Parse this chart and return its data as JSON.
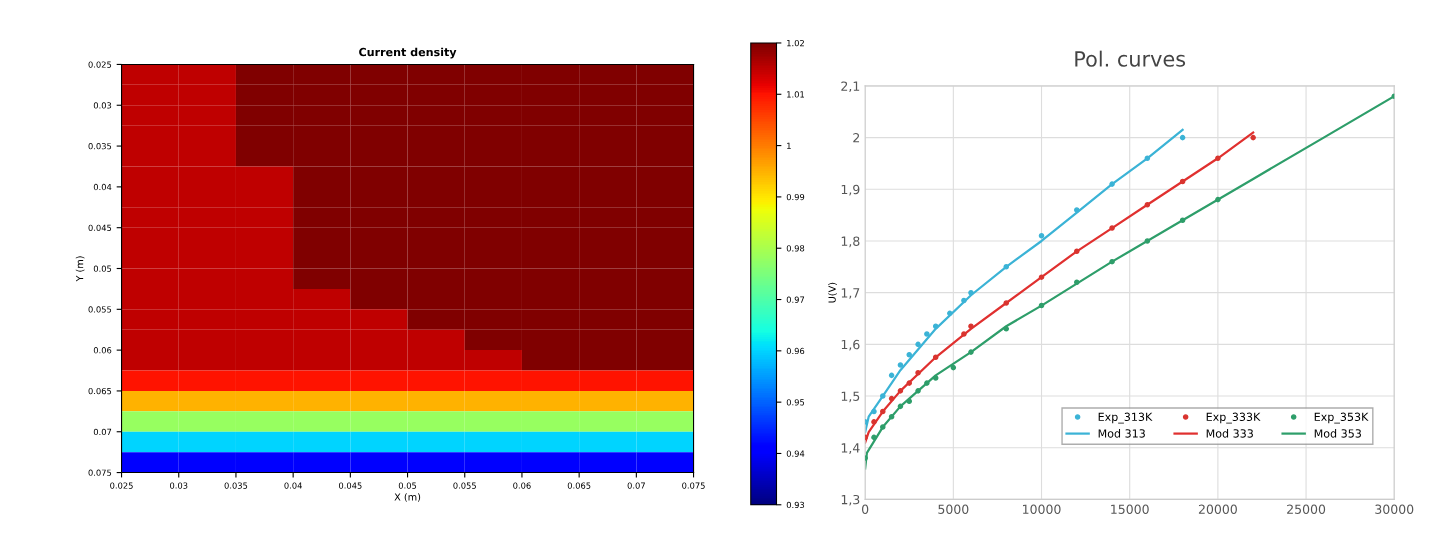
{
  "chart_data": [
    {
      "type": "heatmap",
      "title": "Current density",
      "xlabel": "X (m)",
      "ylabel": "Y (m)",
      "x": [
        0.0275,
        0.0325,
        0.0375,
        0.0425,
        0.0475,
        0.0525,
        0.0575,
        0.0625,
        0.0675,
        0.0725
      ],
      "y": [
        0.02625,
        0.02875,
        0.03125,
        0.03375,
        0.03625,
        0.03875,
        0.04125,
        0.04375,
        0.04625,
        0.04875,
        0.05125,
        0.05375,
        0.05625,
        0.05875,
        0.06125,
        0.06375,
        0.06625,
        0.06875,
        0.07125,
        0.07375
      ],
      "cells": [
        [
          1.015,
          1.015,
          1.02,
          1.02,
          1.02,
          1.02,
          1.02,
          1.02,
          1.02,
          1.02
        ],
        [
          1.015,
          1.015,
          1.02,
          1.02,
          1.02,
          1.02,
          1.02,
          1.02,
          1.02,
          1.02
        ],
        [
          1.015,
          1.015,
          1.02,
          1.02,
          1.02,
          1.02,
          1.02,
          1.02,
          1.02,
          1.02
        ],
        [
          1.015,
          1.015,
          1.02,
          1.02,
          1.02,
          1.02,
          1.02,
          1.02,
          1.02,
          1.02
        ],
        [
          1.015,
          1.015,
          1.02,
          1.02,
          1.02,
          1.02,
          1.02,
          1.02,
          1.02,
          1.02
        ],
        [
          1.015,
          1.015,
          1.015,
          1.02,
          1.02,
          1.02,
          1.02,
          1.02,
          1.02,
          1.02
        ],
        [
          1.015,
          1.015,
          1.015,
          1.02,
          1.02,
          1.02,
          1.02,
          1.02,
          1.02,
          1.02
        ],
        [
          1.015,
          1.015,
          1.015,
          1.02,
          1.02,
          1.02,
          1.02,
          1.02,
          1.02,
          1.02
        ],
        [
          1.015,
          1.015,
          1.015,
          1.02,
          1.02,
          1.02,
          1.02,
          1.02,
          1.02,
          1.02
        ],
        [
          1.015,
          1.015,
          1.015,
          1.02,
          1.02,
          1.02,
          1.02,
          1.02,
          1.02,
          1.02
        ],
        [
          1.015,
          1.015,
          1.015,
          1.02,
          1.02,
          1.02,
          1.02,
          1.02,
          1.02,
          1.02
        ],
        [
          1.015,
          1.015,
          1.015,
          1.015,
          1.02,
          1.02,
          1.02,
          1.02,
          1.02,
          1.02
        ],
        [
          1.015,
          1.015,
          1.015,
          1.015,
          1.015,
          1.02,
          1.02,
          1.02,
          1.02,
          1.02
        ],
        [
          1.015,
          1.015,
          1.015,
          1.015,
          1.015,
          1.015,
          1.02,
          1.02,
          1.02,
          1.02
        ],
        [
          1.015,
          1.015,
          1.015,
          1.015,
          1.015,
          1.015,
          1.015,
          1.02,
          1.02,
          1.02
        ],
        [
          1.01,
          1.01,
          1.01,
          1.01,
          1.01,
          1.01,
          1.01,
          1.01,
          1.01,
          1.01
        ],
        [
          0.995,
          0.995,
          0.995,
          0.995,
          0.995,
          0.995,
          0.995,
          0.995,
          0.995,
          0.995
        ],
        [
          0.978,
          0.978,
          0.978,
          0.978,
          0.978,
          0.978,
          0.978,
          0.978,
          0.978,
          0.978
        ],
        [
          0.96,
          0.96,
          0.96,
          0.96,
          0.96,
          0.96,
          0.96,
          0.96,
          0.96,
          0.96
        ],
        [
          0.94,
          0.94,
          0.94,
          0.94,
          0.94,
          0.94,
          0.94,
          0.94,
          0.94,
          0.94
        ]
      ],
      "xlim": [
        0.025,
        0.075
      ],
      "xticks": [
        0.025,
        0.03,
        0.035,
        0.04,
        0.045,
        0.05,
        0.055,
        0.06,
        0.065,
        0.07,
        0.075
      ],
      "ylim": [
        0.075,
        0.025
      ],
      "yticks": [
        0.025,
        0.03,
        0.035,
        0.04,
        0.045,
        0.05,
        0.055,
        0.06,
        0.065,
        0.07,
        0.075
      ],
      "clim": [
        0.93,
        1.02
      ],
      "cticks": [
        0.93,
        0.94,
        0.95,
        0.96,
        0.97,
        0.98,
        0.99,
        {
          "value": 1,
          "label": "1"
        },
        1.01,
        1.02
      ]
    },
    {
      "type": "scatter",
      "title": "Pol. curves",
      "ylabel": "U(V)",
      "xlim": [
        0,
        30000
      ],
      "xticks": [
        0,
        5000,
        10000,
        15000,
        20000,
        25000,
        30000
      ],
      "ylim": [
        1.3,
        2.1
      ],
      "yticks": [
        {
          "value": 1.3,
          "label": "1,3"
        },
        {
          "value": 1.4,
          "label": "1,4"
        },
        {
          "value": 1.5,
          "label": "1,5"
        },
        {
          "value": 1.6,
          "label": "1,6"
        },
        {
          "value": 1.7,
          "label": "1,7"
        },
        {
          "value": 1.8,
          "label": "1,8"
        },
        {
          "value": 1.9,
          "label": "1,9"
        },
        {
          "value": 2,
          "label": "2"
        },
        {
          "value": 2.1,
          "label": "2,1"
        }
      ],
      "grid": true,
      "legend": "bottom right",
      "series": [
        {
          "name": "Exp_313K",
          "type": "scatter",
          "marker": "circle",
          "color": "#3bb3d6",
          "x": [
            0,
            500,
            1000,
            1500,
            2000,
            2500,
            3000,
            3500,
            4000,
            4800,
            5600,
            6000,
            8000,
            10000,
            12000,
            14000,
            16000,
            18000
          ],
          "values": [
            1.45,
            1.47,
            1.5,
            1.54,
            1.56,
            1.58,
            1.6,
            1.62,
            1.635,
            1.66,
            1.685,
            1.7,
            1.75,
            1.81,
            1.86,
            1.91,
            1.96,
            2.0
          ]
        },
        {
          "name": "Mod 313",
          "type": "line",
          "color": "#3bb3d6",
          "x": [
            0,
            200,
            1000,
            2000,
            4000,
            6000,
            8000,
            10000,
            12000,
            14000,
            16000,
            18000
          ],
          "values": [
            1.43,
            1.46,
            1.5,
            1.55,
            1.63,
            1.695,
            1.75,
            1.8,
            1.855,
            1.91,
            1.96,
            2.015
          ]
        },
        {
          "name": "Exp_333K",
          "type": "scatter",
          "marker": "circle",
          "color": "#d9342f",
          "x": [
            0,
            500,
            1000,
            1500,
            2000,
            2500,
            3000,
            4000,
            5600,
            6000,
            8000,
            10000,
            12000,
            14000,
            16000,
            18000,
            20000,
            22000
          ],
          "values": [
            1.42,
            1.45,
            1.47,
            1.495,
            1.51,
            1.525,
            1.545,
            1.575,
            1.62,
            1.635,
            1.68,
            1.73,
            1.78,
            1.825,
            1.87,
            1.915,
            1.96,
            2.0
          ]
        },
        {
          "name": "Mod 333",
          "type": "line",
          "color": "#e0302f",
          "x": [
            0,
            200,
            1000,
            2000,
            4000,
            6000,
            8000,
            10000,
            12000,
            14000,
            16000,
            18000,
            20000,
            22000
          ],
          "values": [
            1.41,
            1.43,
            1.47,
            1.51,
            1.575,
            1.63,
            1.68,
            1.73,
            1.78,
            1.825,
            1.87,
            1.915,
            1.96,
            2.01
          ]
        },
        {
          "name": "Exp_353K",
          "type": "scatter",
          "marker": "circle",
          "color": "#2e9e6a",
          "x": [
            0,
            500,
            1000,
            1500,
            2000,
            2500,
            3000,
            3500,
            4000,
            5000,
            6000,
            8000,
            10000,
            12000,
            14000,
            16000,
            18000,
            20000,
            30000
          ],
          "values": [
            1.38,
            1.42,
            1.44,
            1.46,
            1.48,
            1.49,
            1.51,
            1.525,
            1.535,
            1.555,
            1.585,
            1.63,
            1.675,
            1.72,
            1.76,
            1.8,
            1.84,
            1.88,
            2.08
          ]
        },
        {
          "name": "Mod 353",
          "type": "line",
          "color": "#2e9e6a",
          "x": [
            0,
            100,
            1000,
            2000,
            4000,
            6000,
            8000,
            10000,
            14000,
            18000,
            22000,
            26000,
            30000
          ],
          "values": [
            1.36,
            1.39,
            1.44,
            1.48,
            1.54,
            1.585,
            1.635,
            1.675,
            1.76,
            1.84,
            1.92,
            2.0,
            2.08
          ]
        }
      ]
    }
  ]
}
